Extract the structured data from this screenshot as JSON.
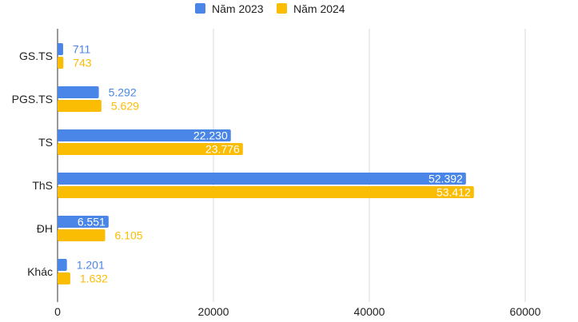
{
  "chart_data": {
    "type": "bar",
    "orientation": "horizontal",
    "categories": [
      "GS.TS",
      "PGS.TS",
      "TS",
      "ThS",
      "ĐH",
      "Khác"
    ],
    "series": [
      {
        "name": "Năm 2023",
        "color": "#4a86e8",
        "values": [
          711,
          5292,
          22230,
          52392,
          6551,
          1201
        ],
        "labels": [
          "711",
          "5.292",
          "22.230",
          "52.392",
          "6.551",
          "1.201"
        ]
      },
      {
        "name": "Năm 2024",
        "color": "#fbbc04",
        "values": [
          743,
          5629,
          23776,
          53412,
          6105,
          1632
        ],
        "labels": [
          "743",
          "5.629",
          "23.776",
          "53.412",
          "6.105",
          "1.632"
        ]
      }
    ],
    "x_ticks": [
      0,
      20000,
      40000,
      60000
    ],
    "x_tick_labels": [
      "0",
      "20000",
      "40000",
      "60000"
    ],
    "xlim": [
      0,
      60000
    ],
    "grid": true,
    "legend_position": "top"
  }
}
